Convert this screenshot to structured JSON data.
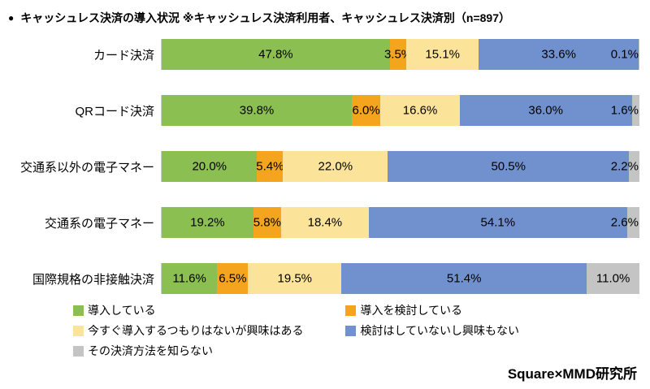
{
  "title": "キャッシュレス決済の導入状況 ※キャッシュレス決済利用者、キャッシュレス決済別（n=897）",
  "title_bullet": "●",
  "footer": "Square×MMD研究所",
  "chart_data": {
    "type": "bar",
    "orientation": "horizontal-stacked",
    "title": "キャッシュレス決済の導入状況 ※キャッシュレス決済利用者、キャッシュレス決済別（n=897）",
    "n": 897,
    "categories": [
      "カード決済",
      "QRコード決済",
      "交通系以外の電子マネー",
      "交通系の電子マネー",
      "国際規格の非接触決済"
    ],
    "series": [
      {
        "name": "導入している",
        "color": "#8CBF52",
        "values": [
          47.8,
          39.8,
          20.0,
          19.2,
          11.6
        ]
      },
      {
        "name": "導入を検討している",
        "color": "#F4A41D",
        "values": [
          3.5,
          6.0,
          5.4,
          5.8,
          6.5
        ]
      },
      {
        "name": "今すぐ導入するつもりはないが興味はある",
        "color": "#FBE399",
        "values": [
          15.1,
          16.6,
          22.0,
          18.4,
          19.5
        ]
      },
      {
        "name": "検討はしていないし興味もない",
        "color": "#7191CE",
        "values": [
          33.6,
          36.0,
          50.5,
          54.1,
          51.4
        ]
      },
      {
        "name": "その決済方法を知らない",
        "color": "#C4C4C4",
        "values": [
          0.1,
          1.6,
          2.2,
          2.6,
          11.0
        ]
      }
    ],
    "value_suffix": "%",
    "xlim": [
      0,
      100
    ],
    "grid": false,
    "legend_position": "bottom",
    "legend_order": [
      0,
      2,
      4,
      1,
      3
    ]
  }
}
